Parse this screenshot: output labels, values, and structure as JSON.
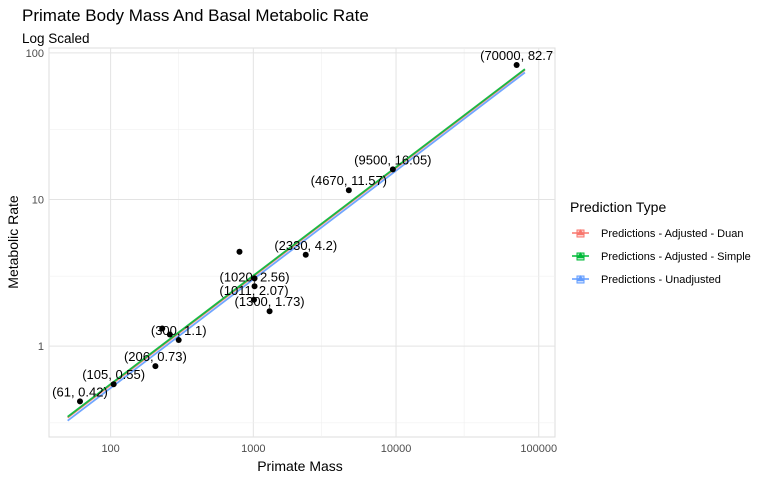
{
  "chart_data": {
    "type": "scatter",
    "title": "Primate Body Mass And Basal Metabolic Rate",
    "subtitle": "Log Scaled",
    "xlabel": "Primate Mass",
    "ylabel": "Metabolic Rate",
    "xscale": "log10",
    "yscale": "log10",
    "xlim": [
      37,
      130000
    ],
    "ylim": [
      0.24,
      108
    ],
    "x_ticks": [
      100,
      1000,
      10000,
      100000
    ],
    "x_tick_labels": [
      "100",
      "1000",
      "10000",
      "100000"
    ],
    "y_ticks": [
      1,
      10,
      100
    ],
    "y_tick_labels": [
      "1",
      "10",
      "100"
    ],
    "grid": true,
    "points": [
      {
        "x": 61,
        "y": 0.42,
        "label": "(61, 0.42)"
      },
      {
        "x": 105,
        "y": 0.55,
        "label": "(105, 0.55)"
      },
      {
        "x": 206,
        "y": 0.73,
        "label": "(206, 0.73)"
      },
      {
        "x": 230,
        "y": 1.32,
        "label": ""
      },
      {
        "x": 260,
        "y": 1.2,
        "label": ""
      },
      {
        "x": 300,
        "y": 1.1,
        "label": "(300, 1.1)"
      },
      {
        "x": 800,
        "y": 4.4,
        "label": ""
      },
      {
        "x": 1011,
        "y": 2.07,
        "label": "(1011, 2.07)"
      },
      {
        "x": 1020,
        "y": 2.56,
        "label": "(1020, 2.56)"
      },
      {
        "x": 1020,
        "y": 2.9,
        "label": ""
      },
      {
        "x": 1300,
        "y": 1.73,
        "label": "(1300, 1.73)"
      },
      {
        "x": 2330,
        "y": 4.2,
        "label": "(2330, 4.2)"
      },
      {
        "x": 4670,
        "y": 11.57,
        "label": "(4670, 11.57)"
      },
      {
        "x": 9500,
        "y": 16.05,
        "label": "(9500, 16.05)"
      },
      {
        "x": 70000,
        "y": 82.7,
        "label": "(70000, 82.7"
      }
    ],
    "legend": {
      "title": "Prediction Type",
      "position": "right"
    },
    "series": [
      {
        "name": "Predictions - Adjusted - Duan",
        "color": "#F8766D",
        "x": [
          50,
          80000
        ],
        "y": [
          0.325,
          76.5
        ]
      },
      {
        "name": "Predictions - Adjusted - Simple",
        "color": "#00BA38",
        "x": [
          50,
          80000
        ],
        "y": [
          0.33,
          77.5
        ]
      },
      {
        "name": "Predictions - Unadjusted",
        "color": "#619CFF",
        "x": [
          50,
          80000
        ],
        "y": [
          0.31,
          73.5
        ]
      }
    ]
  }
}
